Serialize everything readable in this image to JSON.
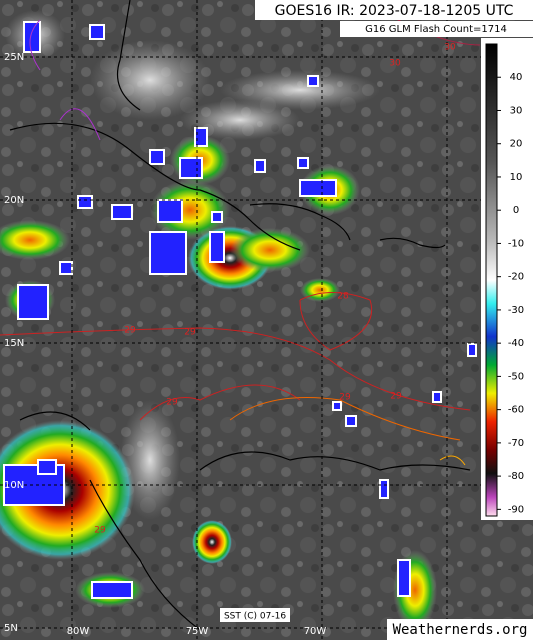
{
  "header": {
    "title": "GOES16 IR: 2023-07-18-1205 UTC",
    "subtitle": "G16 GLM Flash Count=1714"
  },
  "colorbar": {
    "range": [
      -92,
      50
    ],
    "ticks": [
      40,
      30,
      20,
      10,
      0,
      -10,
      -20,
      -30,
      -40,
      -50,
      -60,
      -70,
      -80,
      -90
    ]
  },
  "map": {
    "lat_labels": [
      "25N",
      "20N",
      "15N",
      "10N",
      "5N"
    ],
    "lon_labels": [
      "80W",
      "75W",
      "70W"
    ],
    "contour_labels": [
      "30",
      "30",
      "29",
      "29",
      "29",
      "29",
      "29",
      "29",
      "28"
    ]
  },
  "footer": {
    "sst": "SST (C) 07-16",
    "credit": "Weathernerds.org"
  }
}
